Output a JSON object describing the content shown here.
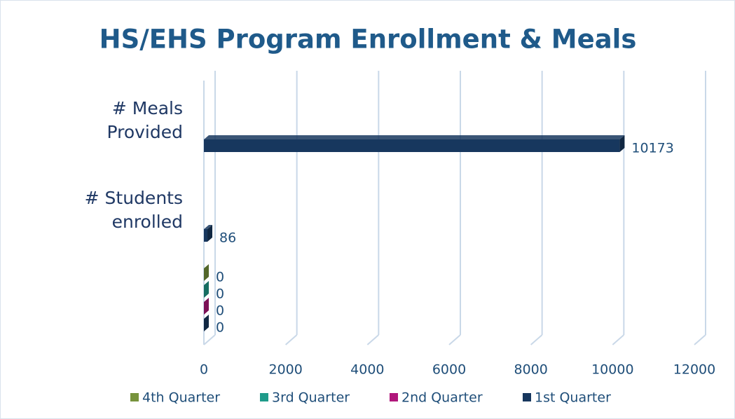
{
  "chart_data": {
    "type": "bar",
    "orientation": "horizontal",
    "title": "HS/EHS Program Enrollment & Meals",
    "categories": [
      "# Meals Provided",
      "# Students enrolled",
      null
    ],
    "series": [
      {
        "name": "4th Quarter",
        "color": "#77933c",
        "values": [
          null,
          null,
          0
        ]
      },
      {
        "name": "3rd Quarter",
        "color": "#1f9b8a",
        "values": [
          null,
          null,
          0
        ]
      },
      {
        "name": "2nd Quarter",
        "color": "#b0177b",
        "values": [
          null,
          null,
          0
        ]
      },
      {
        "name": "1st Quarter",
        "color": "#17375e",
        "values": [
          10173,
          86,
          0
        ]
      }
    ],
    "xlim": [
      0,
      12000
    ],
    "xticks": [
      0,
      2000,
      4000,
      6000,
      8000,
      10000,
      12000
    ],
    "grid": true,
    "legend": "bottom"
  }
}
